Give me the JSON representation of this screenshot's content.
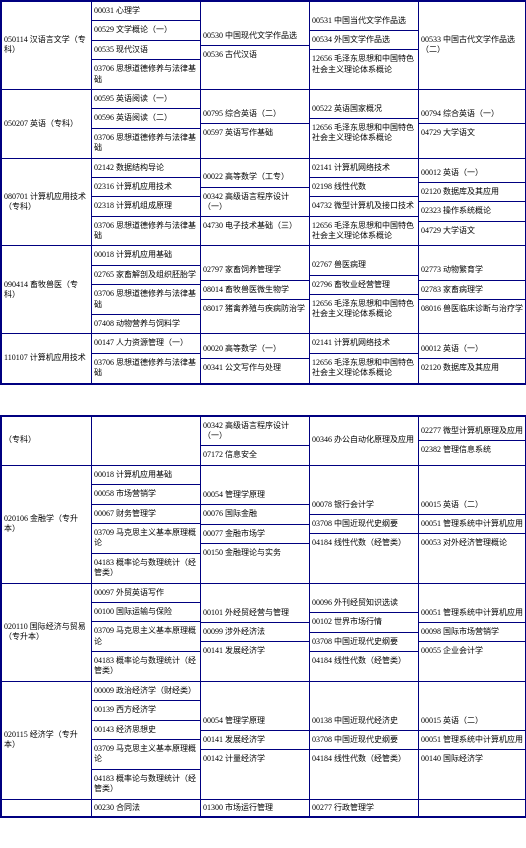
{
  "border_color": "#000080",
  "text_color": "#000000",
  "background_color": "#ffffff",
  "font_size": 8,
  "table1": {
    "rows": [
      {
        "major": "050114 汉语言文学（专科）",
        "c1": [
          "00031 心理学",
          "00529 文学概论（一）",
          "00535 现代汉语",
          "03706 思想道德修养与法律基础"
        ],
        "c2": [
          "00530 中国现代文学作品选",
          "00536 古代汉语"
        ],
        "c3": [
          "00531 中国当代文学作品选",
          "00534 外国文学作品选",
          "12656 毛泽东思想和中国特色社会主义理论体系概论"
        ],
        "c4": [
          "00533 中国古代文学作品选（二）"
        ]
      },
      {
        "major": "050207 英语（专科）",
        "c1": [
          "00595 英语阅读（一）",
          "00596 英语阅读（二）",
          "03706 思想道德修养与法律基础"
        ],
        "c2": [
          "00795 综合英语（二）",
          "00597 英语写作基础"
        ],
        "c3": [
          "00522 英语国家概况",
          "12656 毛泽东思想和中国特色社会主义理论体系概论"
        ],
        "c4": [
          "00794 综合英语（一）",
          "04729 大学语文"
        ]
      },
      {
        "major": "080701 计算机应用技术（专科）",
        "c1": [
          "02142 数据结构导论",
          "02316 计算机应用技术",
          "02318 计算机组成原理",
          "03706 思想道德修养与法律基础"
        ],
        "c2": [
          "00022 高等数学（工专）",
          "00342 高级语言程序设计（一）",
          "04730 电子技术基础（三）"
        ],
        "c3": [
          "02141 计算机网络技术",
          "02198 线性代数",
          "04732 微型计算机及接口技术",
          "12656 毛泽东思想和中国特色社会主义理论体系概论"
        ],
        "c4": [
          "00012 英语（一）",
          "02120 数据库及其应用",
          "02323 操作系统概论",
          "04729 大学语文"
        ]
      },
      {
        "major": "090414 畜牧兽医（专科）",
        "c1": [
          "00018 计算机应用基础",
          "02765 家畜解剖及组织胚胎学",
          "03706 思想道德修养与法律基础",
          "07408 动物营养与饲料学"
        ],
        "c2": [
          "02797 家畜饲养管理学",
          "08014 畜牧兽医微生物学",
          "08017 猪禽养殖与疾病防治学"
        ],
        "c3": [
          "02767 兽医病理",
          "02796 畜牧业经营管理",
          "12656 毛泽东思想和中国特色社会主义理论体系概论"
        ],
        "c4": [
          "02773 动物繁育学",
          "02783 家畜病理学",
          "08016 兽医临床诊断与治疗学"
        ]
      },
      {
        "major": "110107 计算机应用技术",
        "c1": [
          "00147 人力资源管理（一）",
          "03706 思想道德修养与法律基础"
        ],
        "c2": [
          "00020 高等数学（一）",
          "00341 公文写作与处理"
        ],
        "c3": [
          "02141 计算机网络技术",
          "12656 毛泽东思想和中国特色社会主义理论体系概论"
        ],
        "c4": [
          "00012 英语（一）",
          "02120 数据库及其应用"
        ]
      }
    ]
  },
  "table2": {
    "rows": [
      {
        "major": "（专科）",
        "c1": [],
        "c2": [
          "00342 高级语言程序设计（一）",
          "07172 信息安全"
        ],
        "c3": [
          "00346 办公自动化原理及应用"
        ],
        "c4": [
          "02277 微型计算机原理及应用",
          "02382 管理信息系统"
        ]
      },
      {
        "major": "020106 金融学（专升本）",
        "c1": [
          "00018 计算机应用基础",
          "00058 市场营销学",
          "00067 财务管理学",
          "03709 马克思主义基本原理概论",
          "04183 概率论与数理统计（经管类）"
        ],
        "c2": [
          "00054 管理学原理",
          "00076 国际金融",
          "00077 金融市场学",
          "00150 金融理论与实务"
        ],
        "c3": [
          "00078 银行会计学",
          "03708 中国近现代史纲要",
          "04184 线性代数（经管类）"
        ],
        "c4": [
          "00015 英语（二）",
          "00051 管理系统中计算机应用",
          "00053 对外经济管理概论"
        ]
      },
      {
        "major": "020110 国际经济与贸易（专升本）",
        "c1": [
          "00097 外贸英语写作",
          "00100 国际运输与保险",
          "03709 马克思主义基本原理概论",
          "04183 概率论与数理统计（经管类）"
        ],
        "c2": [
          "00101 外经贸经营与管理",
          "00099 涉外经济法",
          "00141 发展经济学"
        ],
        "c3": [
          "00096 外刊经贸知识选读",
          "00102 世界市场行情",
          "03708 中国近现代史纲要",
          "04184 线性代数（经管类）"
        ],
        "c4": [
          "00051 管理系统中计算机应用",
          "00098 国际市场营销学",
          "00055 企业会计学"
        ]
      },
      {
        "major": "020115 经济学（专升本）",
        "c1": [
          "00009 政治经济学（财经类）",
          "00139 西方经济学",
          "00143 经济思想史",
          "03709 马克思主义基本原理概论",
          "04183 概率论与数理统计（经管类）"
        ],
        "c2": [
          "00054 管理学原理",
          "00141 发展经济学",
          "00142 计量经济学"
        ],
        "c3": [
          "00138 中国近现代经济史",
          "03708 中国近现代史纲要",
          "04184 线性代数（经管类）"
        ],
        "c4": [
          "00015 英语（二）",
          "00051 管理系统中计算机应用",
          "00140 国际经济学"
        ]
      },
      {
        "major": "",
        "c1": [
          "00230 合同法"
        ],
        "c2": [
          "01300 市场运行管理"
        ],
        "c3": [
          "00277 行政管理学"
        ],
        "c4": [
          ""
        ]
      }
    ]
  }
}
